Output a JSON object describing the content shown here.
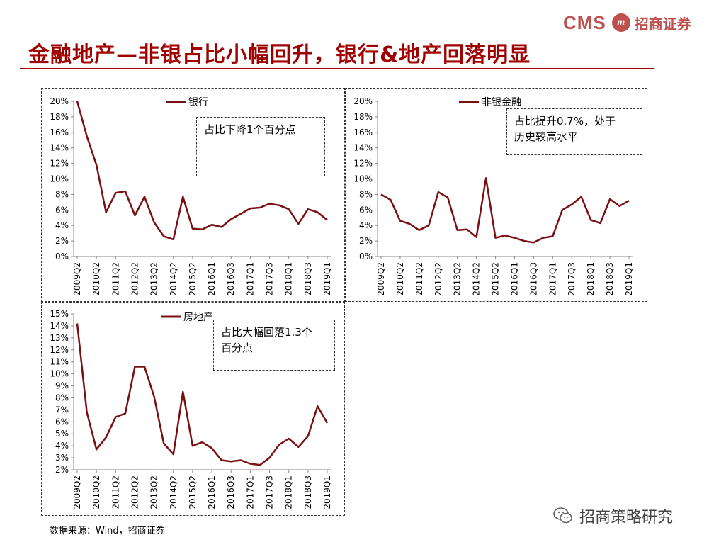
{
  "header": {
    "logo_text": "CMS",
    "logo_badge": "m",
    "logo_cn": "招商证券",
    "title": "金融地产—非银占比小幅回升，银行&地产回落明显"
  },
  "footer": {
    "source": "数据来源：Wind，招商证券",
    "wechat": "招商策略研究"
  },
  "colors": {
    "line": "#7a0f12",
    "title": "#a00000",
    "brand": "#c0504d"
  },
  "chart_data": [
    {
      "type": "line",
      "legend": "银行",
      "annotation": "占比下降1个百分点",
      "ylim": [
        0,
        20
      ],
      "yticks": [
        "0%",
        "2%",
        "4%",
        "6%",
        "8%",
        "10%",
        "12%",
        "14%",
        "16%",
        "18%",
        "20%"
      ],
      "ytick_values": [
        0,
        2,
        4,
        6,
        8,
        10,
        12,
        14,
        16,
        18,
        20
      ],
      "xticks": [
        "2009Q2",
        "2010Q2",
        "2011Q2",
        "2012Q2",
        "2013Q2",
        "2014Q2",
        "2015Q2",
        "2016Q1",
        "2016Q3",
        "2017Q1",
        "2017Q3",
        "2018Q1",
        "2018Q3",
        "2019Q1"
      ],
      "xtick_index": [
        0,
        2,
        4,
        6,
        8,
        10,
        12,
        14,
        16,
        18,
        20,
        22,
        24,
        26
      ],
      "values": [
        20.0,
        15.5,
        11.8,
        5.7,
        8.2,
        8.4,
        5.3,
        7.7,
        4.4,
        2.6,
        2.2,
        7.7,
        3.6,
        3.5,
        4.1,
        3.8,
        4.8,
        5.5,
        6.2,
        6.3,
        6.8,
        6.6,
        6.1,
        4.2,
        6.1,
        5.7,
        4.7
      ]
    },
    {
      "type": "line",
      "legend": "非银金融",
      "annotation": "占比提升0.7%，处于\n历史较高水平",
      "ylim": [
        0,
        20
      ],
      "yticks": [
        "0%",
        "2%",
        "4%",
        "6%",
        "8%",
        "10%",
        "12%",
        "14%",
        "16%",
        "18%",
        "20%"
      ],
      "ytick_values": [
        0,
        2,
        4,
        6,
        8,
        10,
        12,
        14,
        16,
        18,
        20
      ],
      "xticks": [
        "2009Q2",
        "2010Q2",
        "2011Q2",
        "2012Q2",
        "2013Q2",
        "2014Q2",
        "2015Q2",
        "2016Q1",
        "2016Q3",
        "2017Q1",
        "2017Q3",
        "2018Q1",
        "2018Q3",
        "2019Q1"
      ],
      "xtick_index": [
        0,
        2,
        4,
        6,
        8,
        10,
        12,
        14,
        16,
        18,
        20,
        22,
        24,
        26
      ],
      "values": [
        8.0,
        7.3,
        4.6,
        4.2,
        3.4,
        4.0,
        8.3,
        7.6,
        3.4,
        3.5,
        2.5,
        10.1,
        2.4,
        2.7,
        2.4,
        2.0,
        1.8,
        2.4,
        2.6,
        6.0,
        6.7,
        7.7,
        4.7,
        4.3,
        7.4,
        6.5,
        7.2
      ]
    },
    {
      "type": "line",
      "legend": "房地产",
      "annotation": "占比大幅回落1.3个\n百分点",
      "ylim": [
        2,
        15
      ],
      "yticks": [
        "2%",
        "3%",
        "4%",
        "5%",
        "6%",
        "7%",
        "8%",
        "9%",
        "10%",
        "11%",
        "12%",
        "13%",
        "14%",
        "15%"
      ],
      "ytick_values": [
        2,
        3,
        4,
        5,
        6,
        7,
        8,
        9,
        10,
        11,
        12,
        13,
        14,
        15
      ],
      "xticks": [
        "2009Q2",
        "2010Q2",
        "2011Q2",
        "2012Q2",
        "2013Q2",
        "2014Q2",
        "2015Q2",
        "2016Q1",
        "2016Q3",
        "2017Q1",
        "2017Q3",
        "2018Q1",
        "2018Q3",
        "2019Q1"
      ],
      "xtick_index": [
        0,
        2,
        4,
        6,
        8,
        10,
        12,
        14,
        16,
        18,
        20,
        22,
        24,
        26
      ],
      "values": [
        14.2,
        6.8,
        3.7,
        4.7,
        6.4,
        6.7,
        10.6,
        10.6,
        8.1,
        4.2,
        3.3,
        8.5,
        4.0,
        4.3,
        3.8,
        2.8,
        2.7,
        2.8,
        2.5,
        2.4,
        3.0,
        4.1,
        4.6,
        3.9,
        4.8,
        7.3,
        5.9
      ]
    }
  ]
}
